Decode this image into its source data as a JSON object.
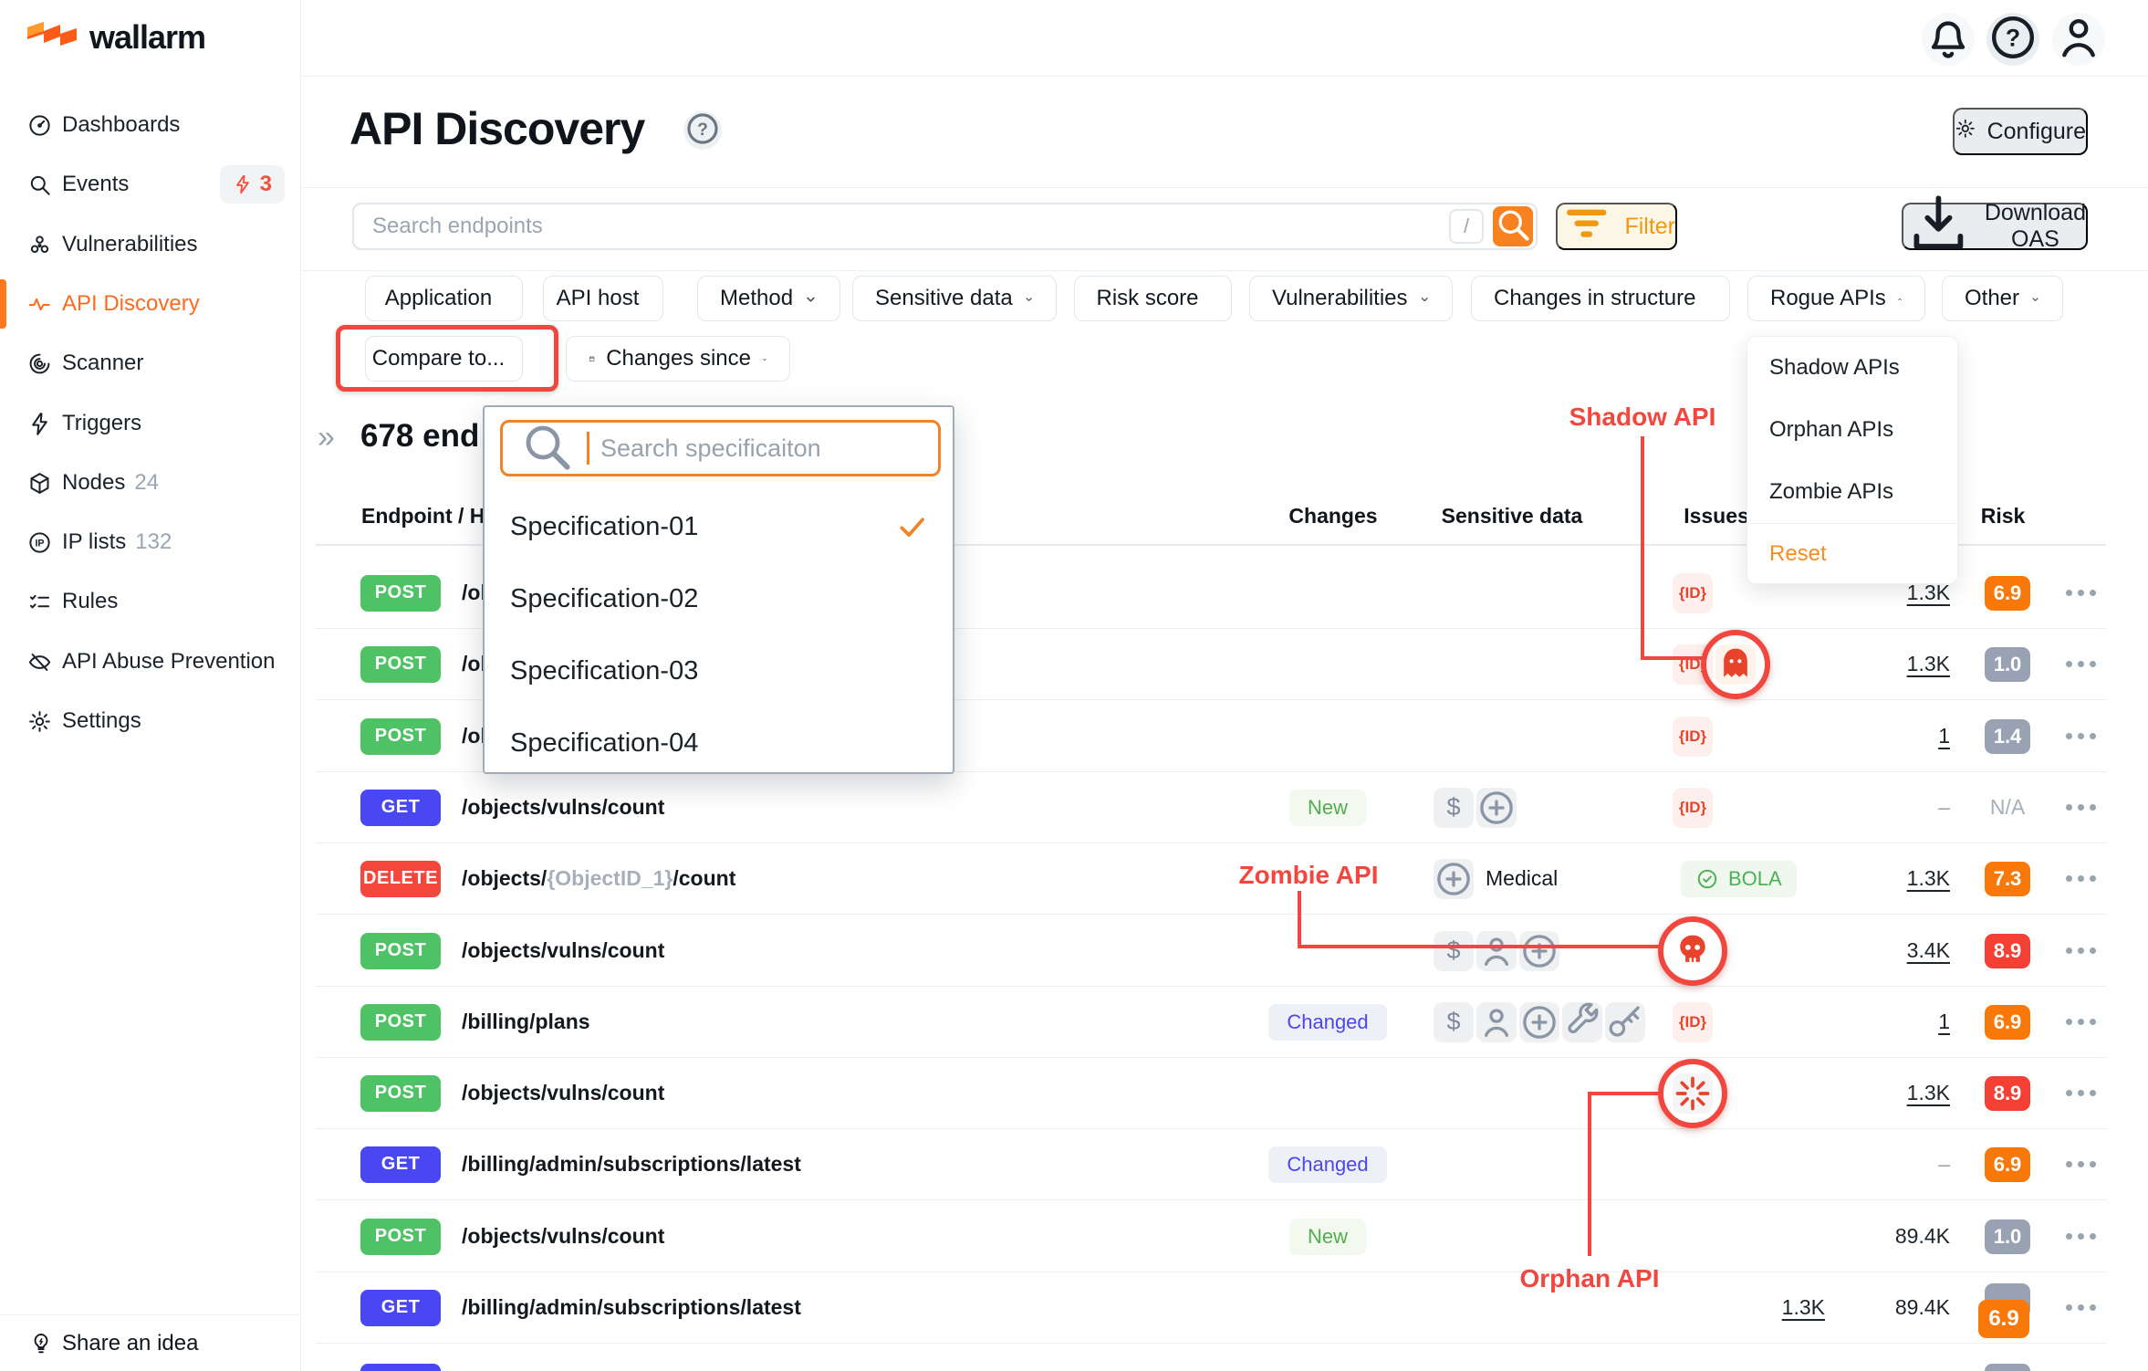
{
  "brand": {
    "name": "wallarm"
  },
  "topbar": {
    "icons": [
      "bell",
      "help",
      "user"
    ]
  },
  "sidebar": {
    "items": [
      {
        "id": "dashboards",
        "label": "Dashboards",
        "icon": "gauge"
      },
      {
        "id": "events",
        "label": "Events",
        "icon": "search",
        "badge": {
          "icon": "lightning",
          "count": "3"
        }
      },
      {
        "id": "vulnerabilities",
        "label": "Vulnerabilities",
        "icon": "vuln"
      },
      {
        "id": "api-discovery",
        "label": "API Discovery",
        "icon": "pulse",
        "active": true
      },
      {
        "id": "scanner",
        "label": "Scanner",
        "icon": "scanner"
      },
      {
        "id": "triggers",
        "label": "Triggers",
        "icon": "lightning"
      },
      {
        "id": "nodes",
        "label": "Nodes",
        "icon": "cube",
        "count": "24"
      },
      {
        "id": "ip-lists",
        "label": "IP lists",
        "icon": "ip",
        "count": "132"
      },
      {
        "id": "rules",
        "label": "Rules",
        "icon": "rules"
      },
      {
        "id": "api-abuse-prevention",
        "label": "API Abuse Prevention",
        "icon": "abuse"
      },
      {
        "id": "settings",
        "label": "Settings",
        "icon": "gear"
      }
    ],
    "footer": {
      "label": "Share an idea",
      "icon": "bulb"
    }
  },
  "header": {
    "title": "API Discovery",
    "configure_label": "Configure"
  },
  "toolbar": {
    "search_placeholder": "Search endpoints",
    "shortcut_key": "/",
    "filter_label": "Filter",
    "download_label": "Download OAS"
  },
  "filters": {
    "row1": [
      "Application",
      "API host",
      "Method",
      "Sensitive data",
      "Risk score",
      "Vulnerabilities",
      "Changes in structure",
      "Rogue APIs",
      "Other"
    ],
    "open_chip": "Rogue APIs",
    "row2": {
      "compare_label": "Compare to...",
      "changes_since_label": "Changes since"
    },
    "rogue_menu": {
      "items": [
        "Shadow APIs",
        "Orphan APIs",
        "Zombie APIs"
      ],
      "reset_label": "Reset"
    }
  },
  "spec_dropdown": {
    "search_placeholder": "Search specificaiton",
    "options": [
      {
        "label": "Specification-01",
        "selected": true
      },
      {
        "label": "Specification-02",
        "selected": false
      },
      {
        "label": "Specification-03",
        "selected": false
      },
      {
        "label": "Specification-04",
        "selected": false
      }
    ]
  },
  "table": {
    "summary": "678 end",
    "columns": [
      "Endpoint / Ho",
      "Changes",
      "Sensitive data",
      "Issues",
      "Risk"
    ],
    "rows": [
      {
        "method": "POST",
        "path": [
          {
            "t": "/ob"
          }
        ],
        "change": null,
        "sens": [],
        "issues": [
          {
            "type": "id"
          }
        ],
        "count1": null,
        "count2": "1.3K",
        "count2_link": true,
        "risk": "6.9",
        "risk_style": "orange"
      },
      {
        "method": "POST",
        "path": [
          {
            "t": "/ob"
          }
        ],
        "change": null,
        "sens": [],
        "issues": [
          {
            "type": "id"
          },
          {
            "type": "ghost",
            "circled": true
          }
        ],
        "count1": null,
        "count2": "1.3K",
        "count2_link": true,
        "risk": "1.0",
        "risk_style": "grey"
      },
      {
        "method": "POST",
        "path": [
          {
            "t": "/ob"
          }
        ],
        "change": null,
        "sens": [],
        "issues": [
          {
            "type": "id"
          }
        ],
        "count1": null,
        "count2": "1",
        "count2_link": true,
        "risk": "1.4",
        "risk_style": "grey"
      },
      {
        "method": "GET",
        "path": [
          {
            "t": "/objects/vulns/count"
          }
        ],
        "change": "New",
        "sens": [
          "dollar",
          "medical"
        ],
        "issues": [
          {
            "type": "id"
          }
        ],
        "count1": null,
        "count2": "–",
        "count2_link": false,
        "risk": "N/A",
        "risk_style": "none"
      },
      {
        "method": "DELETE",
        "path": [
          {
            "t": "/objects/"
          },
          {
            "t": "{ObjectID_1}",
            "muted": true
          },
          {
            "t": "/count"
          }
        ],
        "change": null,
        "sens": [
          "medical"
        ],
        "sens_label": "Medical",
        "issues": [
          {
            "type": "bola",
            "label": "BOLA"
          }
        ],
        "count1": null,
        "count2": "1.3K",
        "count2_link": true,
        "risk": "7.3",
        "risk_style": "orange"
      },
      {
        "method": "POST",
        "path": [
          {
            "t": "/objects/vulns/count"
          }
        ],
        "change": null,
        "sens": [
          "dollar",
          "person",
          "medical"
        ],
        "issues": [
          {
            "type": "skull",
            "circled": true
          }
        ],
        "count1": null,
        "count2": "3.4K",
        "count2_link": true,
        "risk": "8.9",
        "risk_style": "red"
      },
      {
        "method": "POST",
        "path": [
          {
            "t": "/billing/plans"
          }
        ],
        "change": "Changed",
        "sens": [
          "dollar",
          "person",
          "medical",
          "wrench",
          "key"
        ],
        "issues": [
          {
            "type": "id"
          }
        ],
        "count1": null,
        "count2": "1",
        "count2_link": true,
        "risk": "6.9",
        "risk_style": "orange"
      },
      {
        "method": "POST",
        "path": [
          {
            "t": "/objects/vulns/count"
          }
        ],
        "change": null,
        "sens": [],
        "issues": [
          {
            "type": "orphan",
            "circled": true
          }
        ],
        "count1": null,
        "count2": "1.3K",
        "count2_link": true,
        "risk": "8.9",
        "risk_style": "red"
      },
      {
        "method": "GET",
        "path": [
          {
            "t": "/billing/admin/subscriptions/latest"
          }
        ],
        "change": "Changed",
        "sens": [],
        "issues": [],
        "count1": null,
        "count2": "–",
        "count2_link": false,
        "risk": "6.9",
        "risk_style": "orange"
      },
      {
        "method": "POST",
        "path": [
          {
            "t": "/objects/vulns/count"
          }
        ],
        "change": "New",
        "sens": [],
        "issues": [],
        "count1": null,
        "count2": "89.4K",
        "count2_link": false,
        "risk": "1.0",
        "risk_style": "grey"
      },
      {
        "method": "GET",
        "path": [
          {
            "t": "/billing/admin/subscriptions/latest"
          }
        ],
        "change": null,
        "sens": [],
        "issues": [],
        "count1": "1.3K",
        "count1_link": true,
        "count2": "89.4K",
        "count2_link": false,
        "risk": "6.9",
        "risk_style": "overlap"
      }
    ]
  },
  "annotations": {
    "shadow": "Shadow API",
    "zombie": "Zombie API",
    "orphan": "Orphan API"
  },
  "colors": {
    "accent": "#ff6a1f",
    "annotation": "#f2473f",
    "method_post": "#4fc266",
    "method_get": "#4847f2",
    "method_delete": "#f4473c",
    "risk_orange": "#f8780a",
    "risk_red": "#f43f35",
    "risk_grey": "#98a2b3",
    "issue_red": "#e8442c",
    "new_green": "#4fae4e",
    "changed_blue": "#4b46f0"
  }
}
